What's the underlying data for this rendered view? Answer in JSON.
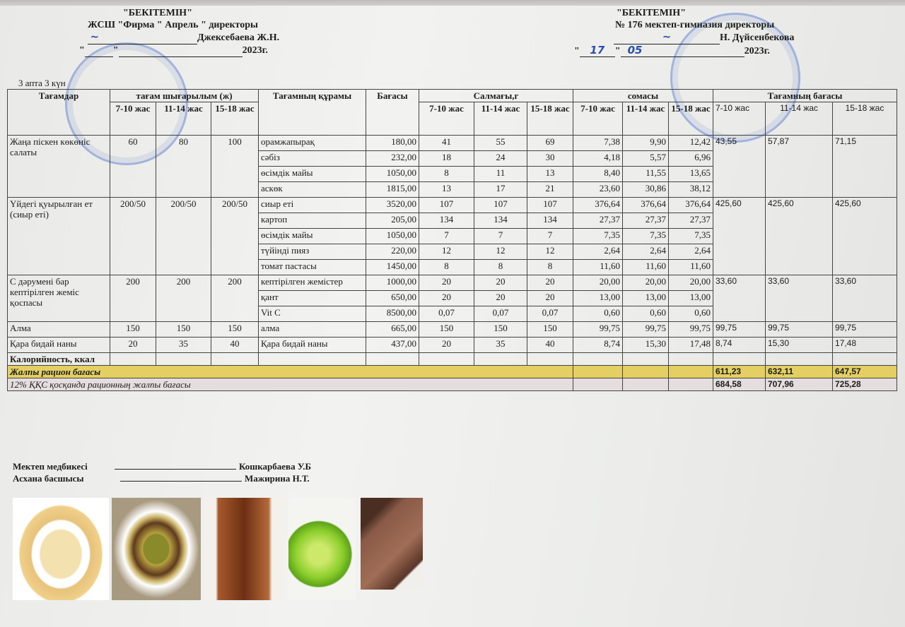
{
  "approval_left": {
    "title": "\"БЕКІТЕМІН\"",
    "org": "ЖСШ \"Фирма \" Апрель \" директоры",
    "name": "Джексебаева Ж.Н.",
    "date_prefix": "\"",
    "date_mid": "\"",
    "year": "2023г.",
    "stamp_text": "ФИРМА \"АПРЕЛЬ\""
  },
  "approval_right": {
    "title": "\"БЕКІТЕМІН\"",
    "org": "№ 176 мектеп-гимназия директоры",
    "name": "Н. Дүйсенбекова",
    "day": "17",
    "month": "05",
    "year": "2023г."
  },
  "day_label": "3 апта 3 күн",
  "headers": {
    "dishes": "Тағамдар",
    "output": "тағам шығарылым  (ж)",
    "composition": "Тағамның құрамы",
    "price": "Бағасы",
    "weight": "Салмағы,г",
    "sum": "сомасы",
    "dish_price": "Тағамның бағасы",
    "ages": [
      "7-10 жас",
      "11-14 жас",
      "15-18 жас"
    ]
  },
  "dishes": [
    {
      "name": "Жаңа піскен көкөніс салаты",
      "outputs": [
        "60",
        "80",
        "100"
      ],
      "prices": [
        "43,55",
        "57,87",
        "71,15"
      ],
      "ingredients": [
        {
          "name": "орамжапырақ",
          "price": "180,00",
          "weights": [
            "41",
            "55",
            "69"
          ],
          "sums": [
            "7,38",
            "9,90",
            "12,42"
          ]
        },
        {
          "name": "сәбіз",
          "price": "232,00",
          "weights": [
            "18",
            "24",
            "30"
          ],
          "sums": [
            "4,18",
            "5,57",
            "6,96"
          ]
        },
        {
          "name": "өсімдік майы",
          "price": "1050,00",
          "weights": [
            "8",
            "11",
            "13"
          ],
          "sums": [
            "8,40",
            "11,55",
            "13,65"
          ]
        },
        {
          "name": "аскөк",
          "price": "1815,00",
          "weights": [
            "13",
            "17",
            "21"
          ],
          "sums": [
            "23,60",
            "30,86",
            "38,12"
          ]
        }
      ]
    },
    {
      "name": "Үйдегі қуырылған ет (сиыр еті)",
      "outputs": [
        "200/50",
        "200/50",
        "200/50"
      ],
      "prices": [
        "425,60",
        "425,60",
        "425,60"
      ],
      "ingredients": [
        {
          "name": "сиыр еті",
          "price": "3520,00",
          "weights": [
            "107",
            "107",
            "107"
          ],
          "sums": [
            "376,64",
            "376,64",
            "376,64"
          ]
        },
        {
          "name": "картоп",
          "price": "205,00",
          "weights": [
            "134",
            "134",
            "134"
          ],
          "sums": [
            "27,37",
            "27,37",
            "27,37"
          ]
        },
        {
          "name": "өсімдік майы",
          "price": "1050,00",
          "weights": [
            "7",
            "7",
            "7"
          ],
          "sums": [
            "7,35",
            "7,35",
            "7,35"
          ]
        },
        {
          "name": "түйінді пияз",
          "price": "220,00",
          "weights": [
            "12",
            "12",
            "12"
          ],
          "sums": [
            "2,64",
            "2,64",
            "2,64"
          ]
        },
        {
          "name": "томат пастасы",
          "price": "1450,00",
          "weights": [
            "8",
            "8",
            "8"
          ],
          "sums": [
            "11,60",
            "11,60",
            "11,60"
          ]
        }
      ]
    },
    {
      "name": "С дәрумені бар кептірілген жеміс қоспасы",
      "outputs": [
        "200",
        "200",
        "200"
      ],
      "prices": [
        "33,60",
        "33,60",
        "33,60"
      ],
      "ingredients": [
        {
          "name": "кептірілген жемістер",
          "price": "1000,00",
          "weights": [
            "20",
            "20",
            "20"
          ],
          "sums": [
            "20,00",
            "20,00",
            "20,00"
          ]
        },
        {
          "name": "қант",
          "price": "650,00",
          "weights": [
            "20",
            "20",
            "20"
          ],
          "sums": [
            "13,00",
            "13,00",
            "13,00"
          ]
        },
        {
          "name": "Vit C",
          "price": "8500,00",
          "weights": [
            "0,07",
            "0,07",
            "0,07"
          ],
          "sums": [
            "0,60",
            "0,60",
            "0,60"
          ]
        }
      ]
    },
    {
      "name": "Алма",
      "outputs": [
        "150",
        "150",
        "150"
      ],
      "prices": [
        "99,75",
        "99,75",
        "99,75"
      ],
      "ingredients": [
        {
          "name": "алма",
          "price": "665,00",
          "weights": [
            "150",
            "150",
            "150"
          ],
          "sums": [
            "99,75",
            "99,75",
            "99,75"
          ]
        }
      ]
    },
    {
      "name": "Қара бидай наны",
      "outputs": [
        "20",
        "35",
        "40"
      ],
      "prices": [
        "8,74",
        "15,30",
        "17,48"
      ],
      "ingredients": [
        {
          "name": "Қара бидай наны",
          "price": "437,00",
          "weights": [
            "20",
            "35",
            "40"
          ],
          "sums": [
            "8,74",
            "15,30",
            "17,48"
          ]
        }
      ]
    }
  ],
  "calories_label": "Калорийность, ккал",
  "total": {
    "label": "Жалпы рацион бағасы",
    "values": [
      "611,23",
      "632,11",
      "647,57"
    ],
    "color": "#e3cf62"
  },
  "vat_total": {
    "label": "12% ҚҚС қосқанда рационның жалпы бағасы",
    "values": [
      "684,58",
      "707,96",
      "725,28"
    ],
    "color": "#e6dede"
  },
  "signatures": [
    {
      "role": "Мектеп медбикесі",
      "name": "Кошкарбаева У.Б"
    },
    {
      "role": "Асхана басшысы",
      "name": "Мажирина Н.Т."
    }
  ],
  "photos": [
    "cabbage-salad-photo",
    "meat-stew-photo",
    "compote-glass-photo",
    "green-apple-photo",
    "rye-bread-photo"
  ]
}
